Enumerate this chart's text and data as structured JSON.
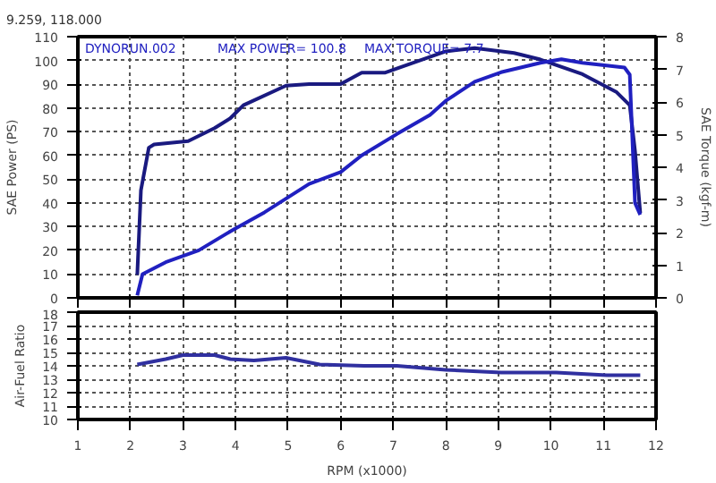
{
  "chart_data": [
    {
      "type": "line",
      "ylabel": "SAE Power (PS)",
      "y2label": "SAE Torque (kgf-m)",
      "annotations": [
        "9.259, 118.000",
        "DYNORUN.002",
        "MAX POWER= 100.8",
        "MAX TORQUE= 7.7"
      ],
      "xlim": [
        1,
        12
      ],
      "xticks": [
        1,
        2,
        3,
        4,
        5,
        6,
        7,
        8,
        9,
        10,
        11,
        12
      ],
      "ylim": [
        0,
        110
      ],
      "yticks": [
        0,
        10,
        20,
        30,
        40,
        50,
        60,
        70,
        80,
        90,
        100,
        110
      ],
      "y2lim": [
        0,
        8
      ],
      "y2ticks": [
        0,
        1,
        2,
        3,
        4,
        5,
        6,
        7,
        8
      ],
      "grid": true,
      "tick_labels": "y",
      "line_style": "solid",
      "series": [
        {
          "color": "#1a1a80",
          "axis": "y2",
          "x": [
            2.13,
            2.2,
            2.35,
            2.45,
            3.1,
            3.6,
            3.9,
            4.15,
            4.96,
            5.4,
            6.0,
            6.4,
            6.85,
            8.0,
            8.55,
            9.3,
            9.8,
            10.6,
            11.25,
            11.5,
            11.6,
            11.7
          ],
          "values": [
            0.7,
            3.3,
            4.6,
            4.7,
            4.8,
            5.2,
            5.5,
            5.9,
            6.5,
            6.55,
            6.55,
            6.9,
            6.9,
            7.55,
            7.65,
            7.5,
            7.3,
            6.85,
            6.3,
            5.9,
            4.5,
            2.6
          ]
        },
        {
          "color": "#2020c0",
          "x": [
            2.13,
            2.23,
            2.67,
            3.3,
            3.9,
            4.55,
            5.4,
            6.0,
            6.4,
            7.07,
            7.7,
            8.0,
            8.55,
            9.05,
            9.8,
            10.2,
            10.6,
            11.4,
            11.5,
            11.6,
            11.7
          ],
          "values": [
            1,
            10,
            15,
            20,
            28,
            36,
            48,
            53,
            60,
            69,
            77,
            83,
            91,
            95,
            99,
            100.5,
            99,
            97,
            94,
            40,
            35
          ]
        }
      ]
    },
    {
      "type": "line",
      "ylabel": "Air-Fuel Ratio",
      "xlabel": "RPM (x1000)",
      "xlim": [
        1,
        12
      ],
      "xticks": [
        1,
        2,
        3,
        4,
        5,
        6,
        7,
        8,
        9,
        10,
        11,
        12
      ],
      "ylim": [
        10,
        18
      ],
      "yticks": [
        10,
        11,
        12,
        13,
        14,
        15,
        16,
        17,
        18
      ],
      "grid": true,
      "line_style": "solid",
      "series": [
        {
          "color": "#3030a0",
          "x": [
            2.13,
            2.67,
            3.0,
            3.6,
            3.9,
            4.35,
            4.96,
            5.6,
            6.44,
            7.07,
            8.0,
            9.05,
            10.1,
            11.06,
            11.7
          ],
          "values": [
            14.1,
            14.5,
            14.8,
            14.8,
            14.5,
            14.4,
            14.6,
            14.1,
            14.0,
            14.0,
            13.7,
            13.5,
            13.5,
            13.3,
            13.3
          ]
        }
      ]
    }
  ]
}
